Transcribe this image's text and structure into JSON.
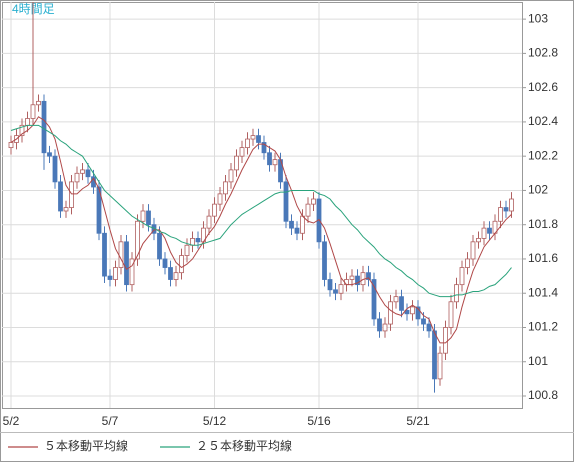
{
  "chart_data": {
    "type": "candlestick",
    "title": "4時間足",
    "categories": [
      "5/2",
      null,
      null,
      null,
      null,
      null,
      null,
      null,
      null,
      null,
      null,
      null,
      null,
      null,
      null,
      null,
      null,
      null,
      "5/7",
      null,
      null,
      null,
      null,
      null,
      null,
      null,
      null,
      null,
      null,
      null,
      null,
      null,
      null,
      null,
      null,
      null,
      null,
      "5/12",
      null,
      null,
      null,
      null,
      null,
      null,
      null,
      null,
      null,
      null,
      null,
      null,
      null,
      null,
      null,
      null,
      null,
      null,
      "5/16",
      null,
      null,
      null,
      null,
      null,
      null,
      null,
      null,
      null,
      null,
      null,
      null,
      null,
      null,
      null,
      null,
      null,
      "5/21",
      null,
      null,
      null,
      null,
      null,
      null,
      null,
      null,
      null,
      null,
      null,
      null,
      null,
      null,
      null,
      null,
      null
    ],
    "open": [
      102.25,
      102.28,
      102.32,
      102.38,
      102.42,
      102.5,
      102.52,
      102.22,
      102.2,
      102.05,
      101.88,
      101.9,
      102.05,
      102.1,
      102.12,
      102.08,
      102.02,
      101.75,
      101.5,
      101.48,
      101.55,
      101.7,
      101.45,
      101.6,
      101.82,
      101.88,
      101.8,
      101.75,
      101.6,
      101.55,
      101.48,
      101.52,
      101.62,
      101.68,
      101.72,
      101.7,
      101.78,
      101.85,
      101.92,
      101.98,
      102.05,
      102.12,
      102.2,
      102.25,
      102.3,
      102.32,
      102.28,
      102.22,
      102.15,
      102.18,
      102.05,
      101.82,
      101.78,
      101.75,
      101.85,
      101.92,
      101.95,
      101.7,
      101.48,
      101.42,
      101.4,
      101.45,
      101.48,
      101.5,
      101.45,
      101.52,
      101.48,
      101.25,
      101.18,
      101.22,
      101.35,
      101.38,
      101.3,
      101.28,
      101.32,
      101.25,
      101.22,
      101.18,
      100.9,
      101.05,
      101.2,
      101.35,
      101.45,
      101.55,
      101.6,
      101.7,
      101.72,
      101.78,
      101.75,
      101.82,
      101.9,
      101.88
    ],
    "high": [
      102.32,
      102.36,
      102.42,
      102.46,
      103.1,
      102.56,
      102.56,
      102.26,
      102.24,
      102.09,
      101.94,
      102.09,
      102.14,
      102.16,
      102.16,
      102.12,
      102.06,
      101.79,
      101.54,
      101.59,
      101.74,
      101.74,
      101.64,
      101.86,
      101.92,
      101.92,
      101.84,
      101.79,
      101.64,
      101.59,
      101.56,
      101.66,
      101.72,
      101.76,
      101.76,
      101.82,
      101.89,
      101.96,
      102.02,
      102.09,
      102.16,
      102.24,
      102.29,
      102.34,
      102.36,
      102.36,
      102.32,
      102.26,
      102.22,
      102.22,
      102.09,
      101.86,
      101.82,
      101.89,
      101.96,
      101.99,
      101.99,
      101.74,
      101.52,
      101.46,
      101.49,
      101.52,
      101.54,
      101.54,
      101.56,
      101.56,
      101.52,
      101.29,
      101.26,
      101.39,
      101.42,
      101.42,
      101.34,
      101.36,
      101.36,
      101.29,
      101.26,
      101.22,
      101.09,
      101.24,
      101.39,
      101.49,
      101.59,
      101.64,
      101.74,
      101.76,
      101.82,
      101.82,
      101.86,
      101.94,
      101.94,
      101.99
    ],
    "low": [
      102.21,
      102.24,
      102.28,
      102.34,
      102.38,
      102.46,
      102.12,
      102.16,
      102.01,
      101.84,
      101.84,
      101.86,
      102.01,
      102.06,
      102.04,
      101.98,
      101.71,
      101.46,
      101.44,
      101.44,
      101.51,
      101.41,
      101.41,
      101.56,
      101.78,
      101.76,
      101.71,
      101.56,
      101.51,
      101.44,
      101.44,
      101.48,
      101.58,
      101.64,
      101.66,
      101.66,
      101.74,
      101.81,
      101.88,
      101.94,
      102.01,
      102.08,
      102.16,
      102.21,
      102.26,
      102.24,
      102.18,
      102.11,
      102.11,
      102.01,
      101.78,
      101.74,
      101.71,
      101.71,
      101.81,
      101.88,
      101.66,
      101.44,
      101.38,
      101.36,
      101.36,
      101.41,
      101.44,
      101.41,
      101.41,
      101.44,
      101.21,
      101.14,
      101.14,
      101.18,
      101.31,
      101.26,
      101.24,
      101.24,
      101.21,
      101.18,
      101.14,
      100.82,
      100.86,
      101.01,
      101.16,
      101.31,
      101.41,
      101.51,
      101.56,
      101.66,
      101.68,
      101.71,
      101.71,
      101.78,
      101.84,
      101.84
    ],
    "close": [
      102.28,
      102.32,
      102.38,
      102.42,
      102.5,
      102.52,
      102.22,
      102.2,
      102.05,
      101.88,
      101.9,
      102.05,
      102.1,
      102.12,
      102.08,
      102.02,
      101.75,
      101.5,
      101.48,
      101.55,
      101.7,
      101.45,
      101.6,
      101.82,
      101.88,
      101.8,
      101.75,
      101.6,
      101.55,
      101.48,
      101.52,
      101.62,
      101.68,
      101.72,
      101.7,
      101.78,
      101.85,
      101.92,
      101.98,
      102.05,
      102.12,
      102.2,
      102.25,
      102.3,
      102.32,
      102.28,
      102.22,
      102.15,
      102.18,
      102.05,
      101.82,
      101.78,
      101.75,
      101.85,
      101.92,
      101.95,
      101.7,
      101.48,
      101.42,
      101.4,
      101.45,
      101.48,
      101.5,
      101.45,
      101.52,
      101.48,
      101.25,
      101.18,
      101.22,
      101.35,
      101.38,
      101.3,
      101.28,
      101.32,
      101.25,
      101.22,
      101.18,
      100.9,
      101.05,
      101.2,
      101.35,
      101.45,
      101.55,
      101.6,
      101.7,
      101.72,
      101.78,
      101.75,
      101.82,
      101.9,
      101.88,
      101.95
    ],
    "up_color": "#ffffff",
    "up_edge_color": "#b06060",
    "down_color": "#4a78b8",
    "series": [
      {
        "name": "５本移動平均線",
        "color": "#b04848",
        "values": [
          102.28,
          102.3,
          102.33,
          102.35,
          102.38,
          102.43,
          102.41,
          102.37,
          102.3,
          102.17,
          102.03,
          101.98,
          101.98,
          102.01,
          102.03,
          102.07,
          102.01,
          101.89,
          101.77,
          101.66,
          101.6,
          101.54,
          101.56,
          101.62,
          101.69,
          101.73,
          101.77,
          101.77,
          101.72,
          101.64,
          101.58,
          101.55,
          101.57,
          101.6,
          101.65,
          101.7,
          101.75,
          101.79,
          101.85,
          101.92,
          101.98,
          102.05,
          102.12,
          102.18,
          102.24,
          102.27,
          102.27,
          102.25,
          102.23,
          102.18,
          102.08,
          102.0,
          101.91,
          101.85,
          101.82,
          101.81,
          101.83,
          101.78,
          101.69,
          101.59,
          101.49,
          101.45,
          101.45,
          101.46,
          101.48,
          101.49,
          101.44,
          101.38,
          101.33,
          101.3,
          101.28,
          101.27,
          101.31,
          101.33,
          101.31,
          101.27,
          101.25,
          101.17,
          101.11,
          101.11,
          101.14,
          101.19,
          101.32,
          101.43,
          101.53,
          101.6,
          101.67,
          101.71,
          101.75,
          101.79,
          101.83,
          101.86
        ]
      },
      {
        "name": "２５本移動平均線",
        "color": "#2aa37c",
        "values": [
          102.35,
          102.36,
          102.37,
          102.38,
          102.38,
          102.38,
          102.36,
          102.34,
          102.32,
          102.29,
          102.27,
          102.24,
          102.22,
          102.2,
          102.15,
          102.1,
          102.05,
          102.0,
          101.97,
          101.94,
          101.91,
          101.88,
          101.85,
          101.83,
          101.81,
          101.79,
          101.78,
          101.76,
          101.75,
          101.73,
          101.72,
          101.7,
          101.69,
          101.68,
          101.68,
          101.69,
          101.7,
          101.71,
          101.72,
          101.76,
          101.8,
          101.83,
          101.86,
          101.88,
          101.9,
          101.92,
          101.94,
          101.96,
          101.98,
          101.99,
          101.99,
          102.0,
          102.0,
          102.0,
          102.0,
          102.0,
          101.98,
          101.97,
          101.95,
          101.91,
          101.88,
          101.84,
          101.8,
          101.77,
          101.73,
          101.7,
          101.67,
          101.63,
          101.6,
          101.58,
          101.55,
          101.53,
          101.5,
          101.48,
          101.45,
          101.43,
          101.4,
          101.39,
          101.38,
          101.38,
          101.38,
          101.39,
          101.39,
          101.4,
          101.41,
          101.41,
          101.42,
          101.44,
          101.45,
          101.48,
          101.51,
          101.55
        ]
      }
    ],
    "ylim": [
      100.73,
      103.1
    ],
    "yticks": [
      100.8,
      101,
      101.2,
      101.4,
      101.6,
      101.8,
      102,
      102.2,
      102.4,
      102.6,
      102.8,
      103
    ],
    "grid": true
  }
}
